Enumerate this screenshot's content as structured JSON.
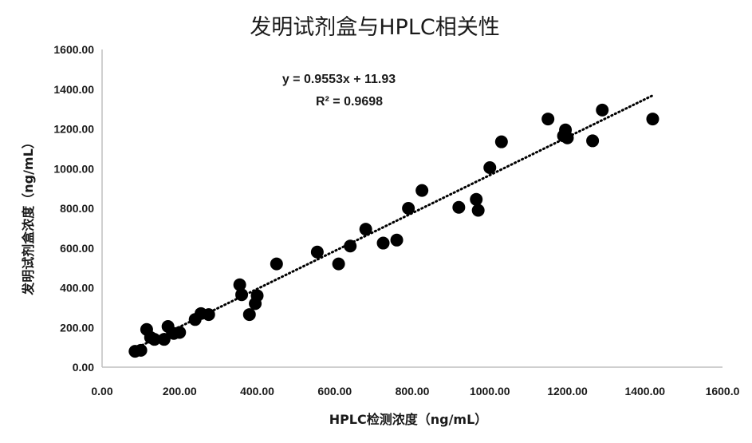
{
  "chart_data": {
    "type": "scatter",
    "title": "发明试剂盒与HPLC相关性",
    "xlabel": "HPLC检测浓度（ng/mL）",
    "ylabel": "发明试剂盒浓度（ng/mL）",
    "xlim": [
      0,
      1600
    ],
    "ylim": [
      0,
      1600
    ],
    "x_ticks": [
      "0.00",
      "200.00",
      "400.00",
      "600.00",
      "800.00",
      "1000.00",
      "1200.00",
      "1400.00",
      "1600.0"
    ],
    "y_ticks": [
      "0.00",
      "200.00",
      "400.00",
      "600.00",
      "800.00",
      "1000.00",
      "1200.00",
      "1400.00",
      "1600.00"
    ],
    "grid": false,
    "legend": "none",
    "marker_color": "#000000",
    "trendline": {
      "style": "dotted",
      "slope": 0.9553,
      "intercept": 11.93,
      "x_range": [
        85,
        1420
      ],
      "equation": "y = 0.9553x + 11.93",
      "r2": "R² = 0.9698"
    },
    "x": [
      85,
      100,
      115,
      125,
      135,
      160,
      170,
      185,
      200,
      240,
      255,
      275,
      355,
      360,
      380,
      395,
      400,
      450,
      555,
      610,
      640,
      680,
      725,
      760,
      790,
      825,
      920,
      965,
      970,
      1000,
      1030,
      1150,
      1190,
      1195,
      1200,
      1265,
      1290,
      1420
    ],
    "y": [
      80,
      85,
      190,
      150,
      140,
      140,
      205,
      170,
      175,
      240,
      270,
      265,
      415,
      365,
      265,
      320,
      360,
      520,
      580,
      520,
      610,
      695,
      625,
      640,
      800,
      890,
      805,
      845,
      790,
      1005,
      1135,
      1250,
      1165,
      1195,
      1155,
      1140,
      1295,
      1250
    ]
  }
}
